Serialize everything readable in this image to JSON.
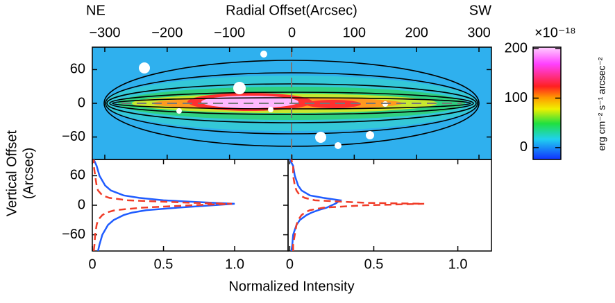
{
  "chart_data": [
    {
      "type": "image",
      "title": "Radial Offset(Arcsec)",
      "annotations": [
        "NE",
        "SW"
      ],
      "ylabel": [
        "Vertical Offset",
        "(Arcsec)"
      ],
      "xlim": [
        -320,
        320
      ],
      "xticks": [
        {
          "value": -300,
          "label": "−300"
        },
        {
          "value": -200,
          "label": "−200"
        },
        {
          "value": -100,
          "label": "−100"
        },
        0,
        100,
        200,
        300
      ],
      "ylim": [
        -100,
        100
      ],
      "yticks": [
        60,
        0,
        {
          "value": -60,
          "label": "−60"
        }
      ],
      "colorbar": {
        "scale_label": "×10⁻¹⁸",
        "label": "erg cm⁻² s⁻¹ arcsec⁻²",
        "clim": [
          -24,
          203
        ],
        "ticks": [
          0,
          100,
          200
        ]
      }
    },
    {
      "type": "line",
      "xlabel": "Normalized Intensity",
      "xlim": [
        0,
        1.375
      ],
      "xticks": [
        0,
        0.5,
        {
          "value": 1,
          "label": "1.0"
        }
      ],
      "ylim": [
        -93,
        93
      ],
      "yticks": [
        60,
        0,
        {
          "value": -60,
          "label": "−60"
        }
      ],
      "y": [
        -93,
        -80,
        -60,
        -40,
        -30,
        -20,
        -15,
        -10,
        -5,
        0,
        3,
        5,
        10,
        15,
        20,
        30,
        40,
        60,
        80,
        93
      ],
      "series": [
        {
          "color": "#1f5cff",
          "linestyle": "solid",
          "values": [
            0.04,
            0.05,
            0.07,
            0.11,
            0.15,
            0.22,
            0.28,
            0.38,
            0.6,
            0.85,
            1.0,
            0.85,
            0.5,
            0.33,
            0.22,
            0.13,
            0.09,
            0.05,
            0.03,
            0.01
          ]
        },
        {
          "color": "#f03c28",
          "linestyle": "dashed",
          "values": [
            0.01,
            0.015,
            0.02,
            0.03,
            0.04,
            0.07,
            0.1,
            0.16,
            0.35,
            0.7,
            0.98,
            0.7,
            0.25,
            0.12,
            0.07,
            0.04,
            0.03,
            0.02,
            0.01,
            0.01
          ]
        }
      ]
    },
    {
      "type": "line",
      "xlim": [
        -0.01,
        1.2
      ],
      "xticks": [
        0,
        0.5,
        {
          "value": 1,
          "label": "1.0"
        }
      ],
      "ylim": [
        -93,
        93
      ],
      "y": [
        -93,
        -80,
        -60,
        -40,
        -30,
        -20,
        -15,
        -10,
        -5,
        0,
        3,
        5,
        10,
        15,
        20,
        30,
        40,
        60,
        80,
        93
      ],
      "series": [
        {
          "color": "#1f5cff",
          "linestyle": "solid",
          "values": [
            0.01,
            0.015,
            0.02,
            0.04,
            0.06,
            0.1,
            0.13,
            0.17,
            0.22,
            0.25,
            0.27,
            0.28,
            0.3,
            0.2,
            0.12,
            0.07,
            0.05,
            0.03,
            0.02,
            0.0
          ]
        },
        {
          "color": "#f03c28",
          "linestyle": "dashed",
          "values": [
            0.02,
            0.02,
            0.03,
            0.04,
            0.05,
            0.07,
            0.09,
            0.12,
            0.2,
            0.45,
            0.8,
            0.45,
            0.15,
            0.09,
            0.06,
            0.04,
            0.03,
            0.02,
            0.02,
            0.01
          ]
        }
      ]
    }
  ]
}
